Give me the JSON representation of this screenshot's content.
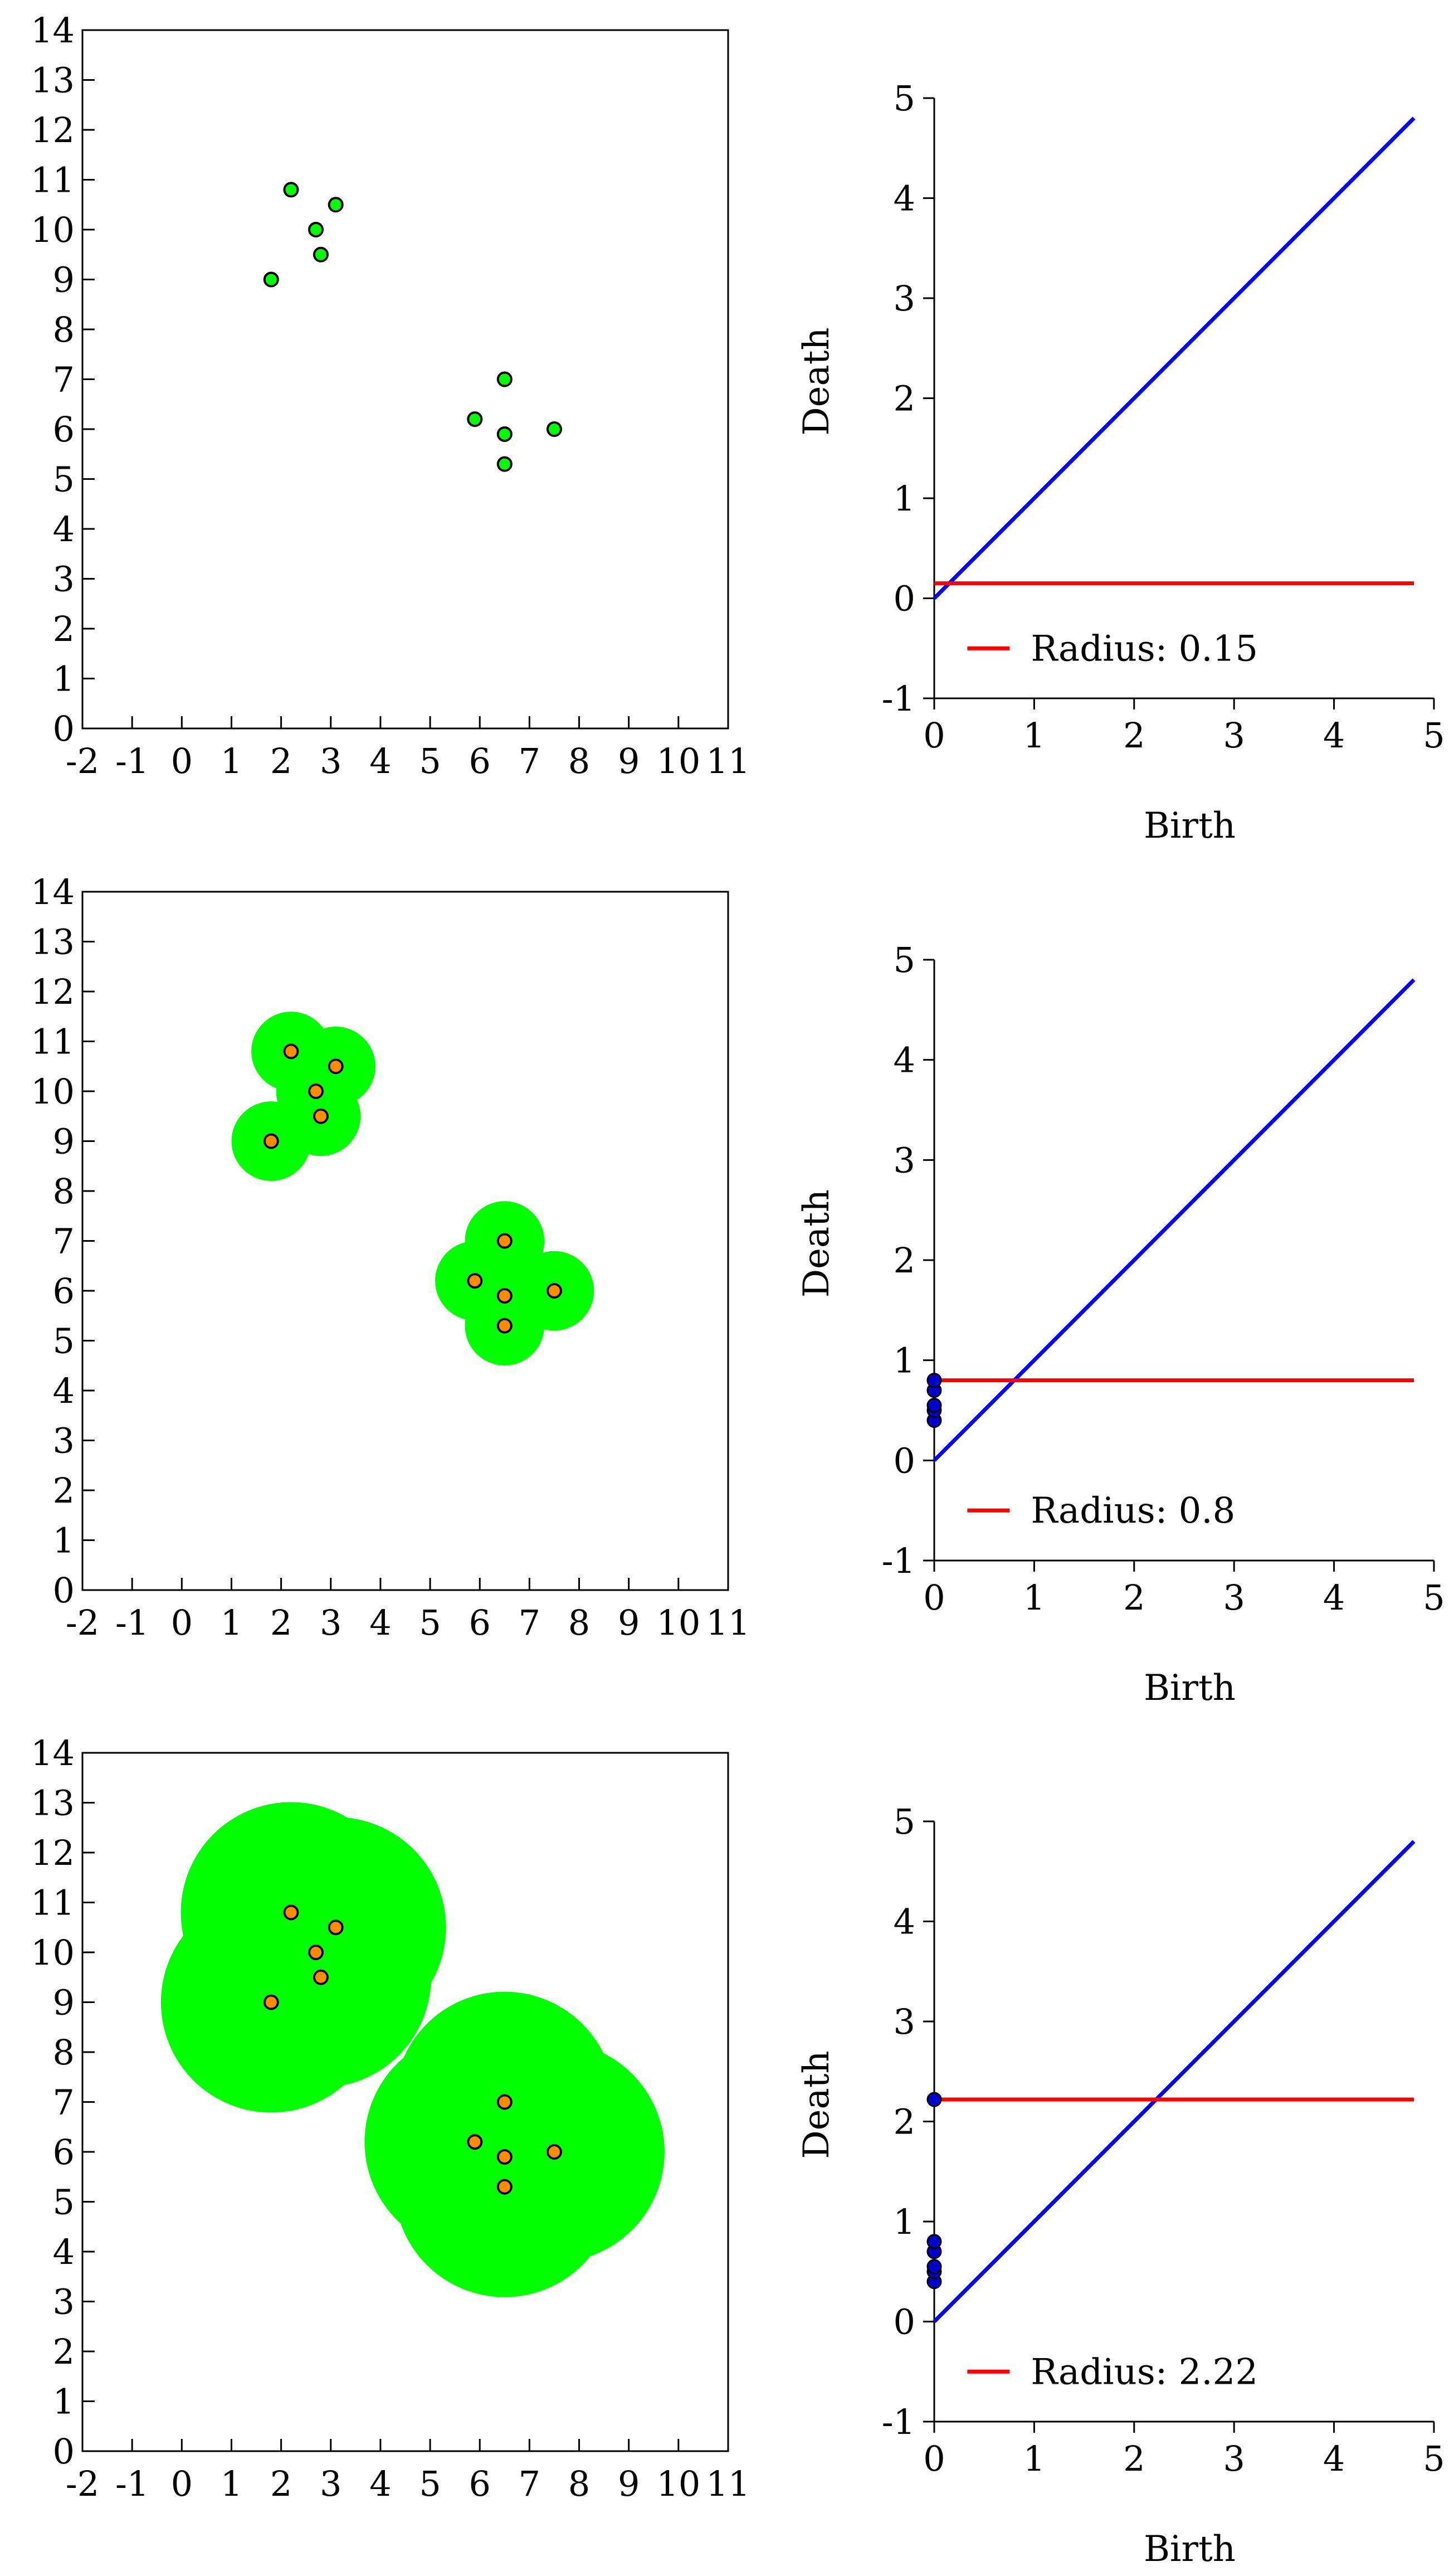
{
  "colors": {
    "disk": "#00ff00",
    "point_fill_green": "#00ff00",
    "point_fill_orange": "#ff8c00",
    "point_stroke": "#000000",
    "diagonal": "#0000ff",
    "radius_line": "#ff0000",
    "pd_point": "#0000cc"
  },
  "chart_data": [
    {
      "type": "scatter",
      "panel": "point-cloud-1",
      "x_ticks": [
        "-2",
        "-1",
        "0",
        "1",
        "2",
        "3",
        "4",
        "5",
        "6",
        "7",
        "8",
        "9",
        "10",
        "11"
      ],
      "y_ticks": [
        "0",
        "1",
        "2",
        "3",
        "4",
        "5",
        "6",
        "7",
        "8",
        "9",
        "10",
        "11",
        "12",
        "13",
        "14"
      ],
      "xlim": [
        -2,
        11
      ],
      "ylim": [
        0,
        14
      ],
      "points": [
        [
          1.8,
          9.0
        ],
        [
          2.2,
          10.8
        ],
        [
          2.7,
          10.0
        ],
        [
          2.8,
          9.5
        ],
        [
          3.1,
          10.5
        ],
        [
          5.9,
          6.2
        ],
        [
          6.5,
          7.0
        ],
        [
          6.5,
          5.9
        ],
        [
          6.5,
          5.3
        ],
        [
          7.5,
          6.0
        ]
      ],
      "disk_radius": 0,
      "point_color": "green"
    },
    {
      "type": "scatter",
      "panel": "persistence-diagram-1",
      "x_ticks": [
        "0",
        "1",
        "2",
        "3",
        "4",
        "5"
      ],
      "y_ticks": [
        "-1",
        "0",
        "1",
        "2",
        "3",
        "4",
        "5"
      ],
      "xlabel": "Birth",
      "ylabel": "Death",
      "xlim": [
        0,
        5
      ],
      "ylim": [
        -1,
        5
      ],
      "diagonal_end": 4.8,
      "radius": 0.15,
      "legend": "Radius: 0.15",
      "points": []
    },
    {
      "type": "scatter",
      "panel": "point-cloud-2",
      "x_ticks": [
        "-2",
        "-1",
        "0",
        "1",
        "2",
        "3",
        "4",
        "5",
        "6",
        "7",
        "8",
        "9",
        "10",
        "11"
      ],
      "y_ticks": [
        "0",
        "1",
        "2",
        "3",
        "4",
        "5",
        "6",
        "7",
        "8",
        "9",
        "10",
        "11",
        "12",
        "13",
        "14"
      ],
      "xlim": [
        -2,
        11
      ],
      "ylim": [
        0,
        14
      ],
      "points": [
        [
          1.8,
          9.0
        ],
        [
          2.2,
          10.8
        ],
        [
          2.7,
          10.0
        ],
        [
          2.8,
          9.5
        ],
        [
          3.1,
          10.5
        ],
        [
          5.9,
          6.2
        ],
        [
          6.5,
          7.0
        ],
        [
          6.5,
          5.9
        ],
        [
          6.5,
          5.3
        ],
        [
          7.5,
          6.0
        ]
      ],
      "disk_radius": 0.8,
      "point_color": "orange"
    },
    {
      "type": "scatter",
      "panel": "persistence-diagram-2",
      "x_ticks": [
        "0",
        "1",
        "2",
        "3",
        "4",
        "5"
      ],
      "y_ticks": [
        "-1",
        "0",
        "1",
        "2",
        "3",
        "4",
        "5"
      ],
      "xlabel": "Birth",
      "ylabel": "Death",
      "xlim": [
        0,
        5
      ],
      "ylim": [
        -1,
        5
      ],
      "diagonal_end": 4.8,
      "radius": 0.8,
      "legend": "Radius: 0.8",
      "points": [
        [
          0,
          0.4
        ],
        [
          0,
          0.5
        ],
        [
          0,
          0.55
        ],
        [
          0,
          0.7
        ],
        [
          0,
          0.8
        ]
      ]
    },
    {
      "type": "scatter",
      "panel": "point-cloud-3",
      "x_ticks": [
        "-2",
        "-1",
        "0",
        "1",
        "2",
        "3",
        "4",
        "5",
        "6",
        "7",
        "8",
        "9",
        "10",
        "11"
      ],
      "y_ticks": [
        "0",
        "1",
        "2",
        "3",
        "4",
        "5",
        "6",
        "7",
        "8",
        "9",
        "10",
        "11",
        "12",
        "13",
        "14"
      ],
      "xlim": [
        -2,
        11
      ],
      "ylim": [
        0,
        14
      ],
      "points": [
        [
          1.8,
          9.0
        ],
        [
          2.2,
          10.8
        ],
        [
          2.7,
          10.0
        ],
        [
          2.8,
          9.5
        ],
        [
          3.1,
          10.5
        ],
        [
          5.9,
          6.2
        ],
        [
          6.5,
          7.0
        ],
        [
          6.5,
          5.9
        ],
        [
          6.5,
          5.3
        ],
        [
          7.5,
          6.0
        ]
      ],
      "disk_radius": 2.22,
      "point_color": "orange"
    },
    {
      "type": "scatter",
      "panel": "persistence-diagram-3",
      "x_ticks": [
        "0",
        "1",
        "2",
        "3",
        "4",
        "5"
      ],
      "y_ticks": [
        "-1",
        "0",
        "1",
        "2",
        "3",
        "4",
        "5"
      ],
      "xlabel": "Birth",
      "ylabel": "Death",
      "xlim": [
        0,
        5
      ],
      "ylim": [
        -1,
        5
      ],
      "diagonal_end": 4.8,
      "radius": 2.22,
      "legend": "Radius: 2.22",
      "points": [
        [
          0,
          0.4
        ],
        [
          0,
          0.5
        ],
        [
          0,
          0.55
        ],
        [
          0,
          0.7
        ],
        [
          0,
          0.8
        ],
        [
          0,
          2.22
        ]
      ]
    }
  ]
}
